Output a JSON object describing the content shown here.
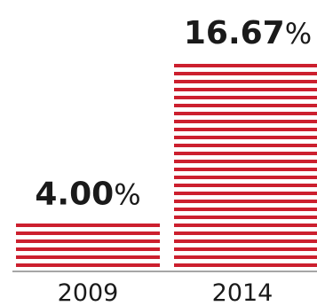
{
  "chart_data": {
    "type": "bar",
    "categories": [
      "2009",
      "2014"
    ],
    "series": [
      {
        "values": [
          4.0,
          16.67
        ],
        "value_labels": [
          "4.00",
          "16.67"
        ],
        "unit": "%"
      }
    ],
    "bar_color": "#cc1f2e",
    "bar_fill_style": "horizontal-stripes",
    "axis_color": "#888888",
    "xlabel": "",
    "ylabel": "",
    "grid": false,
    "legend": "none"
  }
}
